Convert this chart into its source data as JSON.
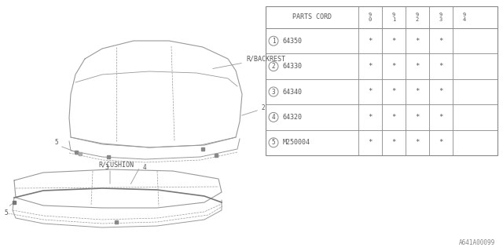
{
  "bg_color": "#ffffff",
  "table_title": "PARTS CORD",
  "col_headers": [
    "9\n0",
    "9\n1",
    "9\n2",
    "9\n3",
    "9\n4"
  ],
  "rows": [
    {
      "num": "1",
      "code": "64350",
      "marks": [
        "*",
        "*",
        "*",
        "*",
        ""
      ]
    },
    {
      "num": "2",
      "code": "64330",
      "marks": [
        "*",
        "*",
        "*",
        "*",
        ""
      ]
    },
    {
      "num": "3",
      "code": "64340",
      "marks": [
        "*",
        "*",
        "*",
        "*",
        ""
      ]
    },
    {
      "num": "4",
      "code": "64320",
      "marks": [
        "*",
        "*",
        "*",
        "*",
        ""
      ]
    },
    {
      "num": "5",
      "code": "M250004",
      "marks": [
        "*",
        "*",
        "*",
        "*",
        ""
      ]
    }
  ],
  "labels": {
    "backrest": "R/BACKREST",
    "cushion": "R/CUSHION",
    "footer": "A641A00099"
  },
  "line_color": "#999999",
  "text_color": "#555555",
  "table_line_color": "#888888"
}
